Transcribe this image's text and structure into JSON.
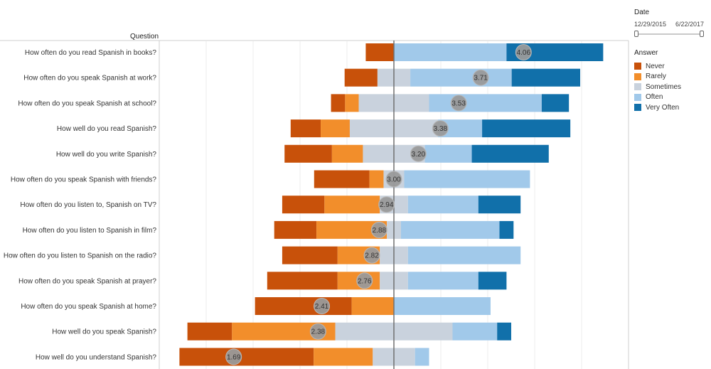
{
  "header": {
    "question_label": "Question"
  },
  "filter": {
    "title": "Date",
    "start": "12/29/2015",
    "end": "6/22/2017"
  },
  "legend": {
    "title": "Answer",
    "items": [
      {
        "label": "Never",
        "color": "#c8510a"
      },
      {
        "label": "Rarely",
        "color": "#f28e2b"
      },
      {
        "label": "Sometimes",
        "color": "#c9d2dd"
      },
      {
        "label": "Often",
        "color": "#a1c9ea"
      },
      {
        "label": "Very Often",
        "color": "#1170aa"
      }
    ]
  },
  "chart_data": {
    "type": "bar",
    "layout": "diverging-stacked",
    "categories": [
      "How often do you read Spanish in books?",
      "How often do you speak Spanish at work?",
      "How often do you speak Spanish at school?",
      "How well do you read Spanish?",
      "How well do you write Spanish?",
      "How often do you speak Spanish with friends?",
      "How often do you listen to, Spanish on TV?",
      "How often do you listen to Spanish in film?",
      "How often do you listen to Spanish on the radio?",
      "How often do you speak Spanish at prayer?",
      "How often do you speak Spanish at home?",
      "How well do you speak Spanish?",
      "How well do you understand Spanish?"
    ],
    "series": [
      {
        "name": "Never",
        "values": [
          6.0,
          7.0,
          3.0,
          6.4,
          10.1,
          11.8,
          9.0,
          9.0,
          11.8,
          15.0,
          20.6,
          9.5,
          28.6
        ]
      },
      {
        "name": "Rarely",
        "values": [
          0.0,
          0.0,
          2.9,
          6.2,
          6.6,
          3.0,
          11.8,
          15.0,
          9.0,
          9.0,
          9.0,
          22.0,
          12.6
        ]
      },
      {
        "name": "Sometimes",
        "values": [
          0.0,
          7.0,
          15.0,
          18.8,
          13.2,
          4.4,
          6.0,
          3.0,
          6.0,
          6.0,
          0.0,
          25.0,
          9.0
        ]
      },
      {
        "name": "Often",
        "values": [
          24.0,
          21.6,
          24.0,
          9.4,
          10.0,
          26.8,
          15.0,
          21.0,
          24.0,
          15.0,
          20.6,
          9.5,
          3.0
        ]
      },
      {
        "name": "Very Often",
        "values": [
          20.6,
          14.6,
          5.8,
          18.8,
          16.4,
          0.0,
          9.0,
          3.0,
          0.0,
          6.0,
          0.0,
          3.0,
          0.0
        ]
      }
    ],
    "averages": [
      "4.06",
      "3.71",
      "3.53",
      "3.38",
      "3.20",
      "3.00",
      "2.94",
      "2.88",
      "2.82",
      "2.76",
      "2.41",
      "2.38",
      "1.69"
    ],
    "average_values": [
      4.06,
      3.71,
      3.53,
      3.38,
      3.2,
      3.0,
      2.94,
      2.88,
      2.82,
      2.76,
      2.41,
      2.38,
      1.69
    ],
    "xlabel": "",
    "ylabel": "Question",
    "xlim": [
      -44,
      50
    ],
    "grid": true
  }
}
